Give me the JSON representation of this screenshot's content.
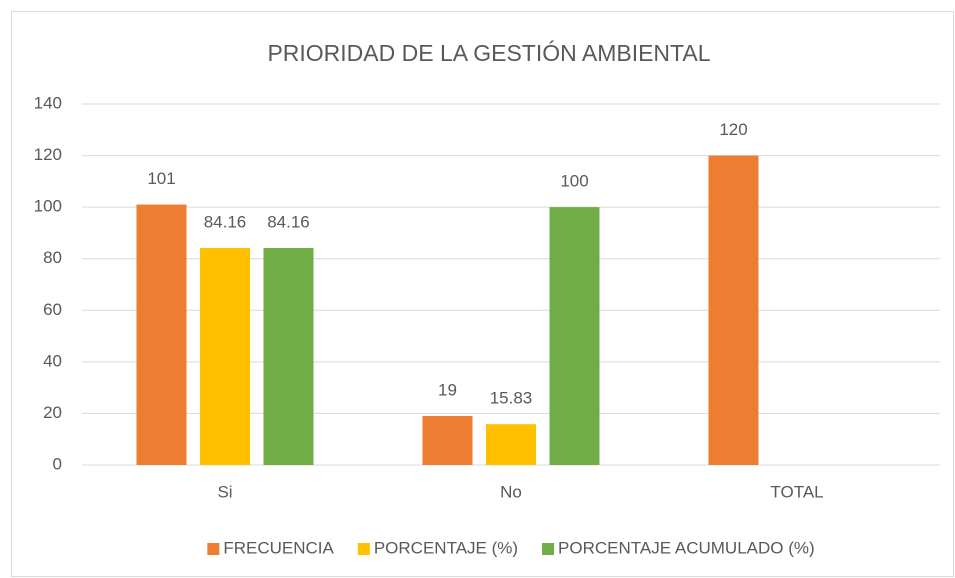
{
  "chart_data": {
    "type": "bar",
    "title": "PRIORIDAD DE LA GESTIÓN AMBIENTAL",
    "categories": [
      "Si",
      "No",
      "TOTAL"
    ],
    "series": [
      {
        "name": "FRECUENCIA",
        "color": "#ED7D31",
        "values": [
          101,
          19,
          120
        ]
      },
      {
        "name": "PORCENTAJE (%)",
        "color": "#FFC000",
        "values": [
          84.16,
          15.83,
          null
        ]
      },
      {
        "name": "PORCENTAJE ACUMULADO (%)",
        "color": "#70AD47",
        "values": [
          84.16,
          100,
          null
        ]
      }
    ],
    "ylim": [
      0,
      140
    ],
    "yticks": [
      0,
      20,
      40,
      60,
      80,
      100,
      120,
      140
    ],
    "grid": true,
    "legend": "bottom"
  }
}
